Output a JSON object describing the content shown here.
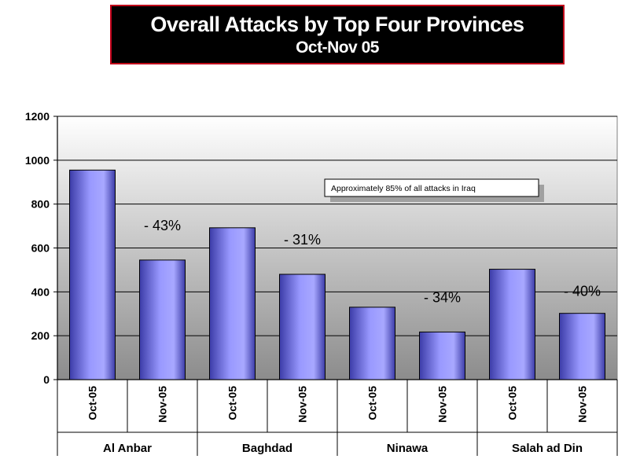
{
  "title": "Overall Attacks by Top Four Provinces",
  "subtitle": "Oct-Nov 05",
  "chart_data": {
    "type": "bar",
    "ylim": [
      0,
      1200
    ],
    "yticks": [
      0,
      200,
      400,
      600,
      800,
      1000,
      1200
    ],
    "grid": true,
    "groups": [
      {
        "name": "Al Anbar",
        "bars": [
          {
            "label": "Oct-05",
            "value": 955
          },
          {
            "label": "Nov-05",
            "value": 545
          }
        ],
        "change": "- 43%"
      },
      {
        "name": "Baghdad",
        "bars": [
          {
            "label": "Oct-05",
            "value": 692
          },
          {
            "label": "Nov-05",
            "value": 480
          }
        ],
        "change": "- 31%"
      },
      {
        "name": "Ninawa",
        "bars": [
          {
            "label": "Oct-05",
            "value": 330
          },
          {
            "label": "Nov-05",
            "value": 217
          }
        ],
        "change": "- 34%"
      },
      {
        "name": "Salah ad Din",
        "bars": [
          {
            "label": "Oct-05",
            "value": 503
          },
          {
            "label": "Nov-05",
            "value": 302
          }
        ],
        "change": "- 40%"
      }
    ],
    "annotation": "Approximately 85% of all attacks in Iraq",
    "colors": {
      "bar": "#9999ff",
      "bar_dark": "#3c3ca8",
      "plot_top": "#ffffff",
      "plot_bottom": "#8c8c8c"
    }
  }
}
